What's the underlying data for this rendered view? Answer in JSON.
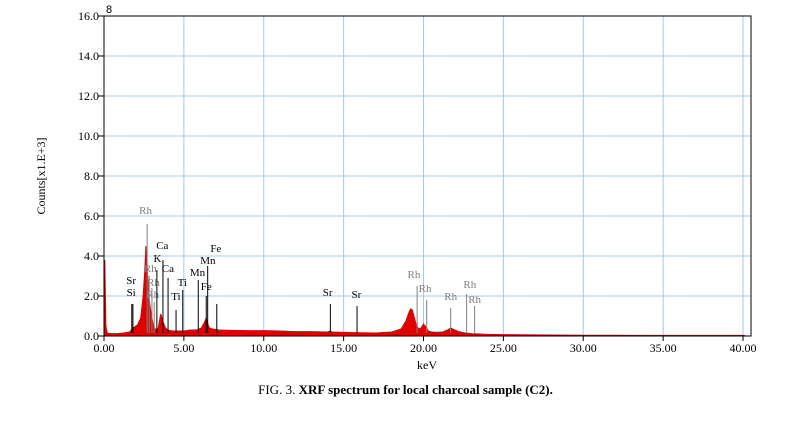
{
  "chart_data": {
    "type": "line",
    "xlabel": "keV",
    "ylabel": "Counts[x1.E+3]",
    "xlim": [
      0,
      40.5
    ],
    "ylim": [
      0,
      16
    ],
    "x_ticks": [
      0,
      5,
      10,
      15,
      20,
      25,
      30,
      35,
      40
    ],
    "x_tick_labels": [
      "0.00",
      "5.00",
      "10.00",
      "15.00",
      "20.00",
      "25.00",
      "30.00",
      "35.00",
      "40.00"
    ],
    "y_ticks": [
      0,
      2,
      4,
      6,
      8,
      10,
      12,
      14,
      16
    ],
    "y_tick_labels": [
      "0.0",
      "2.0",
      "4.0",
      "6.0",
      "8.0",
      "10.0",
      "12.0",
      "14.0",
      "16.0"
    ],
    "grid": true,
    "top_marker": "8",
    "series": [
      {
        "color": "#e00000",
        "x": [
          0.0,
          0.05,
          0.12,
          0.2,
          0.4,
          0.8,
          1.2,
          1.6,
          1.75,
          1.9,
          2.1,
          2.3,
          2.45,
          2.55,
          2.62,
          2.7,
          2.8,
          2.9,
          3.0,
          3.1,
          3.25,
          3.4,
          3.55,
          3.7,
          3.85,
          4.0,
          4.3,
          4.6,
          5.0,
          5.4,
          5.8,
          6.1,
          6.3,
          6.4,
          6.5,
          6.6,
          6.8,
          7.2,
          8.0,
          9.0,
          10.0,
          11.0,
          12.0,
          13.0,
          14.0,
          14.15,
          14.3,
          15.0,
          16.0,
          17.0,
          18.0,
          18.6,
          18.9,
          19.1,
          19.2,
          19.3,
          19.4,
          19.55,
          19.7,
          19.85,
          20.0,
          20.15,
          20.3,
          20.5,
          20.8,
          21.2,
          21.5,
          21.7,
          21.9,
          22.2,
          22.6,
          23.0,
          23.5,
          24.0,
          25.0,
          26.0,
          28.0,
          30.0,
          32.0,
          34.0,
          36.0,
          38.0,
          40.0,
          40.2
        ],
        "y": [
          0.0,
          3.8,
          0.5,
          0.15,
          0.12,
          0.12,
          0.15,
          0.2,
          0.35,
          0.45,
          0.55,
          0.9,
          2.0,
          3.2,
          4.5,
          3.5,
          2.0,
          1.4,
          0.9,
          0.5,
          0.3,
          0.4,
          1.1,
          0.7,
          0.4,
          0.3,
          0.25,
          0.25,
          0.25,
          0.3,
          0.3,
          0.4,
          0.7,
          0.9,
          0.6,
          0.4,
          0.35,
          0.3,
          0.28,
          0.27,
          0.27,
          0.25,
          0.22,
          0.22,
          0.2,
          0.25,
          0.2,
          0.18,
          0.16,
          0.15,
          0.2,
          0.35,
          0.75,
          1.2,
          1.35,
          1.3,
          1.0,
          0.55,
          0.35,
          0.4,
          0.6,
          0.45,
          0.25,
          0.2,
          0.18,
          0.2,
          0.3,
          0.4,
          0.32,
          0.22,
          0.15,
          0.12,
          0.1,
          0.08,
          0.07,
          0.06,
          0.05,
          0.04,
          0.04,
          0.03,
          0.03,
          0.03,
          0.03,
          0.0
        ]
      }
    ],
    "element_markers": [
      {
        "element": "Si",
        "x": 1.74,
        "y": 1.6,
        "color": "#000000",
        "label_x": 1.7,
        "label_y": 2.0
      },
      {
        "element": "Sr",
        "x": 1.81,
        "y": 1.6,
        "color": "#000000",
        "label_x": 1.7,
        "label_y": 2.6
      },
      {
        "element": "Rh",
        "x": 2.7,
        "y": 5.6,
        "color": "#808080",
        "label_x": 2.6,
        "label_y": 6.1
      },
      {
        "element": "Rh",
        "x": 2.83,
        "y": 3.0,
        "color": "#808080",
        "label_x": 2.9,
        "label_y": 3.2
      },
      {
        "element": "Rh",
        "x": 3.0,
        "y": 2.4,
        "color": "#808080",
        "label_x": 3.1,
        "label_y": 2.5
      },
      {
        "element": "Rh",
        "x": 3.14,
        "y": 1.7,
        "color": "#808080",
        "label_x": 3.05,
        "label_y": 1.9
      },
      {
        "element": "Ca",
        "x": 3.69,
        "y": 3.8,
        "color": "#000000",
        "label_x": 3.65,
        "label_y": 4.35
      },
      {
        "element": "K",
        "x": 3.31,
        "y": 3.3,
        "color": "#000000",
        "label_x": 3.35,
        "label_y": 3.7
      },
      {
        "element": "Ca",
        "x": 4.01,
        "y": 2.9,
        "color": "#000000",
        "label_x": 4.0,
        "label_y": 3.2
      },
      {
        "element": "Ti",
        "x": 4.51,
        "y": 1.3,
        "color": "#000000",
        "label_x": 4.5,
        "label_y": 1.8
      },
      {
        "element": "Ti",
        "x": 4.93,
        "y": 2.3,
        "color": "#000000",
        "label_x": 4.9,
        "label_y": 2.5
      },
      {
        "element": "Mn",
        "x": 5.9,
        "y": 2.8,
        "color": "#000000",
        "label_x": 5.85,
        "label_y": 3.0
      },
      {
        "element": "Mn",
        "x": 6.49,
        "y": 3.5,
        "color": "#000000",
        "label_x": 6.5,
        "label_y": 3.6
      },
      {
        "element": "Fe",
        "x": 6.4,
        "y": 2.0,
        "color": "#000000",
        "label_x": 6.4,
        "label_y": 2.3
      },
      {
        "element": "Fe",
        "x": 7.06,
        "y": 1.6,
        "color": "#000000",
        "label_x": 7.0,
        "label_y": 4.2
      },
      {
        "element": "Sr",
        "x": 14.17,
        "y": 1.6,
        "color": "#000000",
        "label_x": 14.0,
        "label_y": 2.0
      },
      {
        "element": "Sr",
        "x": 15.84,
        "y": 1.5,
        "color": "#000000",
        "label_x": 15.8,
        "label_y": 1.9
      },
      {
        "element": "Rh",
        "x": 19.6,
        "y": 2.5,
        "color": "#808080",
        "label_x": 19.4,
        "label_y": 2.9
      },
      {
        "element": "Rh",
        "x": 20.2,
        "y": 1.8,
        "color": "#808080",
        "label_x": 20.1,
        "label_y": 2.2
      },
      {
        "element": "Rh",
        "x": 21.7,
        "y": 1.4,
        "color": "#808080",
        "label_x": 21.7,
        "label_y": 1.8
      },
      {
        "element": "Rh",
        "x": 22.7,
        "y": 2.1,
        "color": "#808080",
        "label_x": 22.9,
        "label_y": 2.4
      },
      {
        "element": "Rh",
        "x": 23.2,
        "y": 1.5,
        "color": "#808080",
        "label_x": 23.2,
        "label_y": 1.65
      }
    ]
  },
  "caption": {
    "prefix": "FIG. 3. ",
    "text": "XRF spectrum for local charcoal sample (C2)."
  }
}
